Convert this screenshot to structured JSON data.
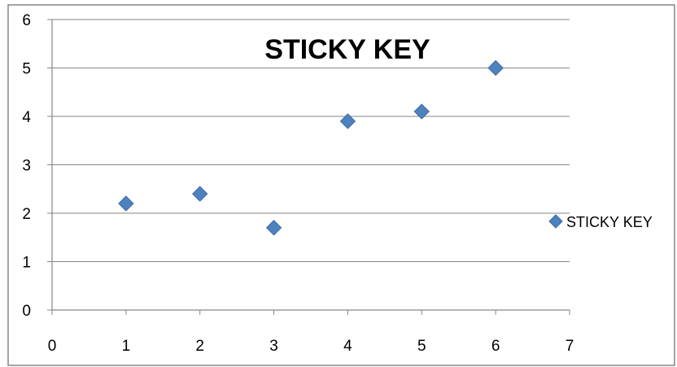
{
  "chart_data": {
    "type": "scatter",
    "title": "STICKY KEY",
    "xlabel": "",
    "ylabel": "",
    "xlim": [
      0,
      7
    ],
    "ylim": [
      0,
      6
    ],
    "x_ticks": [
      "0",
      "1",
      "2",
      "3",
      "4",
      "5",
      "6",
      "7"
    ],
    "y_ticks": [
      "0",
      "1",
      "2",
      "3",
      "4",
      "5",
      "6"
    ],
    "grid": "horizontal",
    "legend_position": "right",
    "series": [
      {
        "name": "STICKY KEY",
        "color": "#4F81BD",
        "marker": "diamond",
        "points": [
          {
            "x": 1,
            "y": 2.2
          },
          {
            "x": 2,
            "y": 2.4
          },
          {
            "x": 3,
            "y": 1.7
          },
          {
            "x": 4,
            "y": 3.9
          },
          {
            "x": 5,
            "y": 4.1
          },
          {
            "x": 6,
            "y": 5.0
          }
        ]
      }
    ]
  }
}
